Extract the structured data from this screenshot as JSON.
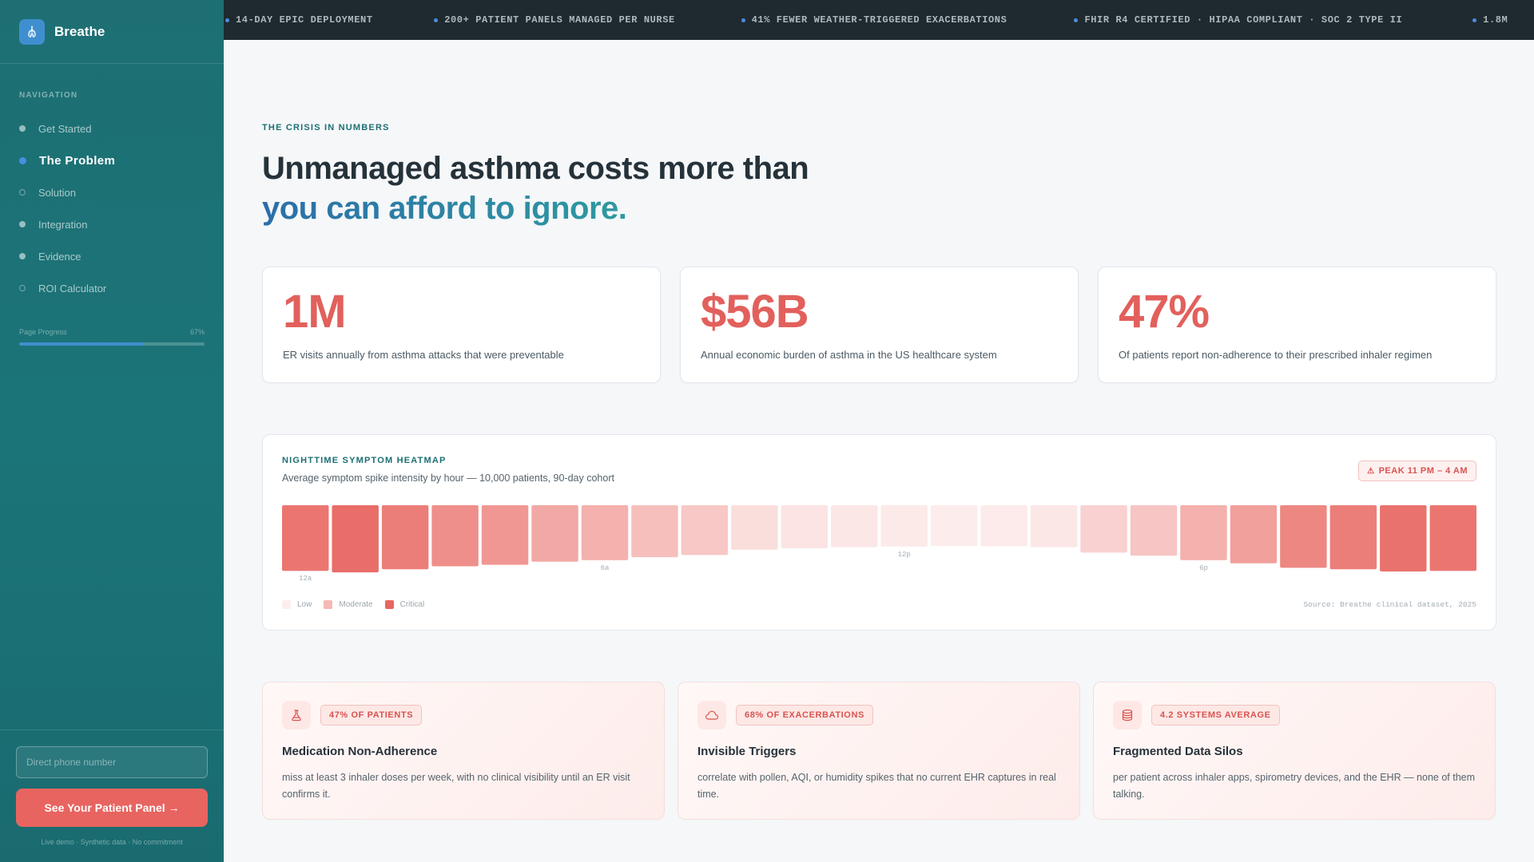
{
  "brand": {
    "name": "Breathe",
    "logo_icon": "lung-icon"
  },
  "nav": {
    "heading": "NAVIGATION",
    "items": [
      {
        "label": "Get Started",
        "state": "visited"
      },
      {
        "label": "The Problem",
        "state": "active"
      },
      {
        "label": "Solution",
        "state": "upcoming"
      },
      {
        "label": "Integration",
        "state": "visited"
      },
      {
        "label": "Evidence",
        "state": "visited"
      },
      {
        "label": "ROI Calculator",
        "state": "upcoming"
      }
    ]
  },
  "progress": {
    "label": "Page Progress",
    "value_text": "67%",
    "value": 0.67
  },
  "sidebar_bottom": {
    "phone_placeholder": "Direct phone number",
    "cta_label": "See Your Patient Panel →",
    "note": "Live demo · Synthetic data · No commitment"
  },
  "ticker": [
    "14-DAY EPIC DEPLOYMENT",
    "200+ PATIENT PANELS MANAGED PER NURSE",
    "41% FEWER WEATHER-TRIGGERED EXACERBATIONS",
    "FHIR R4 CERTIFIED · HIPAA COMPLIANT · SOC 2 TYPE II",
    "1.8M"
  ],
  "hero": {
    "eyebrow": "THE CRISIS IN NUMBERS",
    "headline_line1": "Unmanaged asthma costs more than",
    "headline_line2": "you can afford to ignore."
  },
  "stats": [
    {
      "value": "1M",
      "desc": "ER visits annually from asthma attacks that were preventable"
    },
    {
      "value": "$56B",
      "desc": "Annual economic burden of asthma in the US healthcare system"
    },
    {
      "value": "47%",
      "desc": "Of patients report non-adherence to their prescribed inhaler regimen"
    }
  ],
  "heatmap": {
    "title": "NIGHTTIME SYMPTOM HEATMAP",
    "subtitle": "Average symptom spike intensity by hour — 10,000 patients, 90-day cohort",
    "badge": "PEAK 11 PM – 4 AM",
    "badge_icon": "warning-icon",
    "legend": [
      "Low",
      "Moderate",
      "Critical"
    ],
    "source": "Source: Breathe clinical dataset, 2025",
    "colors": {
      "low": "#fdeeee",
      "moderate": "#f5b9b6",
      "critical": "#e8655f"
    }
  },
  "chart_data": {
    "type": "heatmap",
    "title": "NIGHTTIME SYMPTOM HEATMAP",
    "x_tick_labels": {
      "0": "12a",
      "6": "6a",
      "12": "12p",
      "18": "6p"
    },
    "hours": [
      0,
      1,
      2,
      3,
      4,
      5,
      6,
      7,
      8,
      9,
      10,
      11,
      12,
      13,
      14,
      15,
      16,
      17,
      18,
      19,
      20,
      21,
      22,
      23
    ],
    "values": [
      0.9,
      0.95,
      0.85,
      0.75,
      0.7,
      0.6,
      0.55,
      0.45,
      0.38,
      0.2,
      0.15,
      0.12,
      0.1,
      0.08,
      0.09,
      0.12,
      0.3,
      0.4,
      0.55,
      0.65,
      0.8,
      0.85,
      0.92,
      0.9
    ]
  },
  "problems": [
    {
      "icon": "flask-icon",
      "tag": "47% OF PATIENTS",
      "title": "Medication Non-Adherence",
      "desc": "miss at least 3 inhaler doses per week, with no clinical visibility until an ER visit confirms it."
    },
    {
      "icon": "cloud-icon",
      "tag": "68% OF EXACERBATIONS",
      "title": "Invisible Triggers",
      "desc": "correlate with pollen, AQI, or humidity spikes that no current EHR captures in real time."
    },
    {
      "icon": "database-icon",
      "tag": "4.2 SYSTEMS AVERAGE",
      "title": "Fragmented Data Silos",
      "desc": "per patient across inhaler apps, spirometry devices, and the EHR — none of them talking."
    }
  ]
}
